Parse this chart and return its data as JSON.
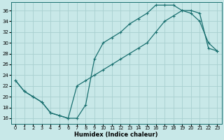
{
  "xlabel": "Humidex (Indice chaleur)",
  "bg_color": "#c8e8e8",
  "grid_color": "#a8d0d0",
  "line_color": "#1a7070",
  "xlim": [
    -0.5,
    23.5
  ],
  "ylim": [
    15.0,
    37.5
  ],
  "xticks": [
    0,
    1,
    2,
    3,
    4,
    5,
    6,
    7,
    8,
    9,
    10,
    11,
    12,
    13,
    14,
    15,
    16,
    17,
    18,
    19,
    20,
    21,
    22,
    23
  ],
  "yticks": [
    16,
    18,
    20,
    22,
    24,
    26,
    28,
    30,
    32,
    34,
    36
  ],
  "curve1_x": [
    0,
    1,
    2,
    3,
    4,
    5,
    6,
    7,
    8,
    9,
    10,
    11,
    12,
    13,
    14,
    15,
    16,
    17,
    18,
    19,
    20,
    21,
    22,
    23
  ],
  "curve1_y": [
    23,
    21,
    20,
    19,
    17,
    16.5,
    16,
    16,
    18.5,
    27,
    30,
    31,
    32,
    33.5,
    34.5,
    35.5,
    37,
    37,
    37,
    36,
    35.5,
    34,
    30,
    28.5
  ],
  "curve2_x": [
    0,
    1,
    2,
    3,
    4,
    5,
    6,
    7,
    8,
    9,
    10,
    11,
    12,
    13,
    14,
    15,
    16,
    17,
    18,
    19,
    20,
    21,
    22,
    23
  ],
  "curve2_y": [
    23,
    21,
    20,
    19,
    17,
    16.5,
    16,
    22,
    23,
    24,
    25,
    26,
    27,
    28,
    29,
    30,
    32,
    34,
    35,
    36,
    36,
    35.5,
    29,
    28.5
  ]
}
